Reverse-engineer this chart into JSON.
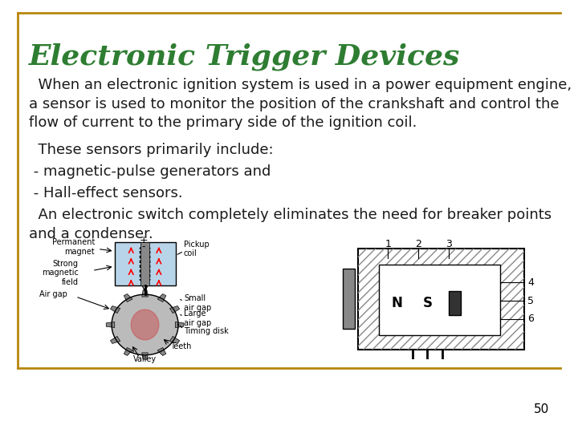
{
  "title": "Electronic Trigger Devices",
  "title_color": "#2E7D32",
  "title_fontsize": 26,
  "body_fontsize": 13,
  "body_color": "#1a1a1a",
  "background_color": "#ffffff",
  "border_color": "#B8860B",
  "page_number": "50",
  "paragraph1": "  When an electronic ignition system is used in a power equipment engine,\na sensor is used to monitor the position of the crankshaft and control the\nflow of current to the primary side of the ignition coil.",
  "paragraph2": "  These sensors primarily include:",
  "paragraph3": " - magnetic-pulse generators and",
  "paragraph4": " - Hall-effect sensors.",
  "paragraph5": "  An electronic electronic switch completely eliminates the need for breaker points\nand a condenser.",
  "left_diagram_labels": {
    "permanent_magnet": "Permanent\nmagnet",
    "pickup_coil": "+ Pickup\n  coil",
    "strong_magnetic": "Strong\nmagnetic\nfield",
    "air_gap": "Air gap",
    "small_air_gap": "Small\nair gap",
    "large_air_gap": "Large\nair gap",
    "timing_disk": "Timing disk",
    "teeth": "Teeth",
    "valley": "Valley"
  },
  "right_diagram_labels": [
    "1",
    "2",
    "3",
    "4",
    "5",
    "6"
  ]
}
